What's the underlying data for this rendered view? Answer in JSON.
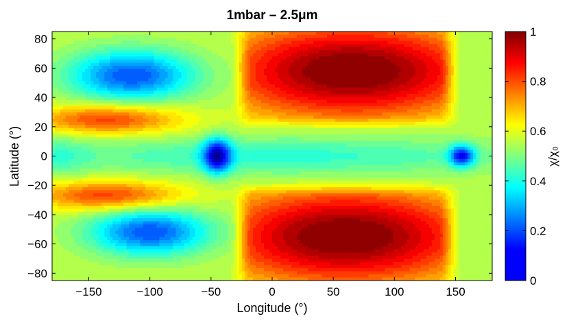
{
  "chart_data": {
    "type": "heatmap",
    "subtype": "filled-contour",
    "title": "1mbar – 2.5μm",
    "xlabel": "Longitude (°)",
    "ylabel": "Latitude (°)",
    "colorbar_label": "χ/χ₀",
    "colormap": "jet",
    "xlim": [
      -180,
      180
    ],
    "ylim": [
      -85,
      85
    ],
    "clim": [
      0,
      1
    ],
    "xticks": [
      -150,
      -100,
      -50,
      0,
      50,
      100,
      150
    ],
    "xtick_labels": [
      "−150",
      "−100",
      "−50",
      "0",
      "50",
      "100",
      "150"
    ],
    "yticks": [
      -80,
      -60,
      -40,
      -20,
      0,
      20,
      40,
      60,
      80
    ],
    "ytick_labels": [
      "−80",
      "−60",
      "−40",
      "−20",
      "0",
      "20",
      "40",
      "60",
      "80"
    ],
    "colorbar_ticks": [
      0,
      0.2,
      0.4,
      0.6,
      0.8,
      1
    ],
    "colorbar_tick_labels": [
      "0",
      "0.2",
      "0.4",
      "0.6",
      "0.8",
      "1"
    ],
    "background_value": 0.56,
    "features": [
      {
        "lon": 65,
        "lat": 58,
        "sig_lon": 80,
        "sig_lat": 24,
        "amp": 0.46,
        "lon_lo": -30,
        "lon_hi": 150,
        "lat_lo": 18,
        "lat_hi": 90
      },
      {
        "lon": 60,
        "lat": -55,
        "sig_lon": 80,
        "sig_lat": 24,
        "amp": 0.46,
        "lon_lo": -30,
        "lon_hi": 150,
        "lat_lo": -90,
        "lat_hi": -18
      },
      {
        "lon": -135,
        "lat": 25,
        "sig_lon": 42,
        "sig_lat": 7,
        "amp": 0.26
      },
      {
        "lon": -135,
        "lat": -27,
        "sig_lon": 42,
        "sig_lat": 7,
        "amp": 0.26
      },
      {
        "lon": -115,
        "lat": 55,
        "sig_lon": 36,
        "sig_lat": 12,
        "amp": -0.36
      },
      {
        "lon": -100,
        "lat": -52,
        "sig_lon": 34,
        "sig_lat": 11,
        "amp": -0.36
      },
      {
        "lon": -45,
        "lat": 0,
        "sig_lon": 8,
        "sig_lat": 8,
        "amp": -0.42
      },
      {
        "lon": 155,
        "lat": 0,
        "sig_lon": 7,
        "sig_lat": 5,
        "amp": -0.38
      },
      {
        "lon": 10,
        "lat": 0,
        "sig_lon": 140,
        "sig_lat": 9,
        "amp": -0.14
      },
      {
        "lon": -175,
        "lat": 0,
        "sig_lon": 18,
        "sig_lat": 10,
        "amp": -0.08
      }
    ]
  }
}
